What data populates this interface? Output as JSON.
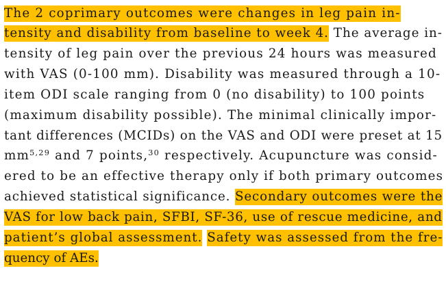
{
  "highlight_color": "#ffc000",
  "lines": [
    {
      "segments": [
        {
          "text": "The 2 coprimary outcomes were changes in leg pain in-",
          "hl": true
        }
      ]
    },
    {
      "segments": [
        {
          "text": "tensity and disability from baseline to week 4.",
          "hl": true
        },
        {
          "text": " The average in-"
        }
      ]
    },
    {
      "segments": [
        {
          "text": "tensity of leg pain over the previous 24 hours was measured"
        }
      ]
    },
    {
      "segments": [
        {
          "text": "with VAS (0-100 mm). Disability was measured through a 10-"
        }
      ]
    },
    {
      "segments": [
        {
          "text": "item ODI scale ranging from 0 (no disability) to 100 points"
        }
      ]
    },
    {
      "segments": [
        {
          "text": "(maximum disability possible). The minimal clinically impor-"
        }
      ]
    },
    {
      "segments": [
        {
          "text": "tant differences (MCIDs) on the VAS and ODI were preset at 15"
        }
      ]
    },
    {
      "segments": [
        {
          "text": "mm"
        },
        {
          "text": "5,29",
          "sup": true
        },
        {
          "text": " and 7 points,"
        },
        {
          "text": "30",
          "sup": true
        },
        {
          "text": " respectively. Acupuncture was consid-"
        }
      ]
    },
    {
      "segments": [
        {
          "text": "ered to be an effective therapy only if both primary outcomes"
        }
      ]
    },
    {
      "segments": [
        {
          "text": "achieved statistical significance. "
        },
        {
          "text": "Secondary outcomes were the",
          "hl": true
        }
      ]
    },
    {
      "segments": [
        {
          "text": "VAS for low back pain, SFBI, SF-36, use of rescue medicine, and",
          "hl": true
        }
      ]
    },
    {
      "segments": [
        {
          "text": "patient’s global assessment.",
          "hl": true
        },
        {
          "text": " "
        },
        {
          "text": "Safety was assessed from the fre-",
          "hl": true
        }
      ]
    },
    {
      "segments": [
        {
          "text": "quency of AEs.",
          "hl": true
        }
      ]
    }
  ]
}
